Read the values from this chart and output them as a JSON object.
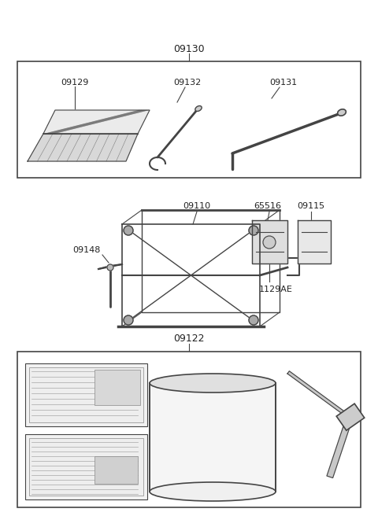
{
  "bg_color": "#ffffff",
  "line_color": "#444444",
  "label_color": "#222222",
  "fig_width": 4.8,
  "fig_height": 6.56,
  "dpi": 100
}
